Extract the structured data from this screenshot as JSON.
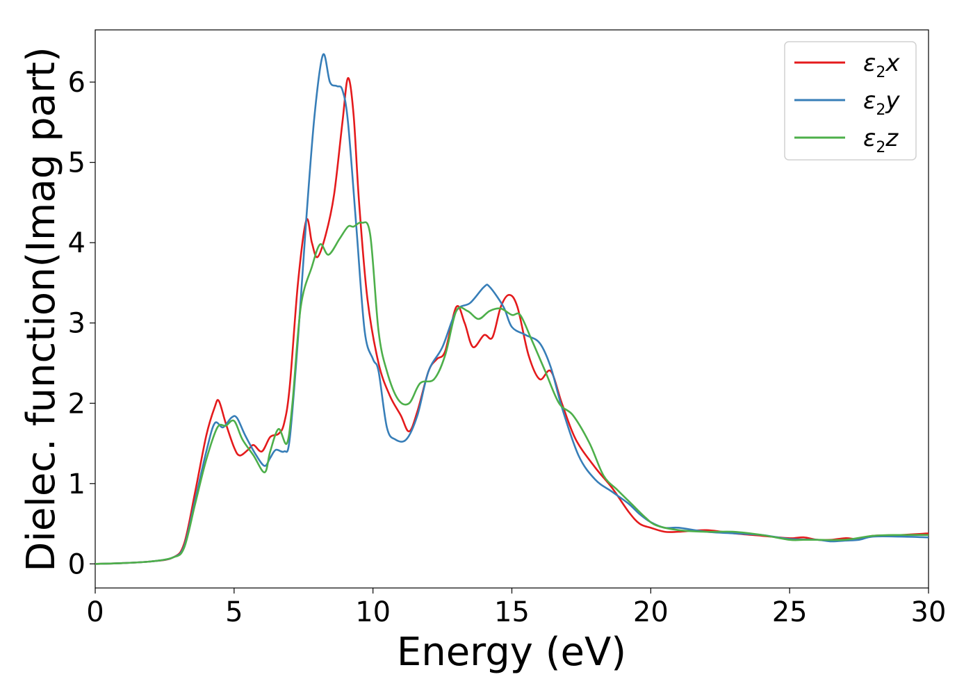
{
  "chart_data": {
    "type": "line",
    "title": "",
    "xlabel": "Energy (eV)",
    "ylabel": "Dielec. function(Imag part)",
    "xlim": [
      0,
      30
    ],
    "ylim": [
      -0.3,
      6.65
    ],
    "x_ticks": [
      0,
      5,
      10,
      15,
      20,
      25,
      30
    ],
    "y_ticks": [
      0,
      1,
      2,
      3,
      4,
      5,
      6
    ],
    "grid": false,
    "legend_position": "top-right",
    "series": [
      {
        "name": "ε₂x",
        "legend_main": "ε",
        "legend_sub": "2",
        "legend_suffix": "x",
        "color": "#e41a1c",
        "points": [
          [
            0,
            0
          ],
          [
            1,
            0.01
          ],
          [
            2,
            0.03
          ],
          [
            2.8,
            0.08
          ],
          [
            3.2,
            0.25
          ],
          [
            3.6,
            0.9
          ],
          [
            4,
            1.6
          ],
          [
            4.3,
            1.95
          ],
          [
            4.45,
            2.03
          ],
          [
            4.7,
            1.75
          ],
          [
            5,
            1.45
          ],
          [
            5.2,
            1.35
          ],
          [
            5.5,
            1.42
          ],
          [
            5.7,
            1.48
          ],
          [
            6,
            1.4
          ],
          [
            6.3,
            1.58
          ],
          [
            6.6,
            1.62
          ],
          [
            6.8,
            1.75
          ],
          [
            7,
            2.2
          ],
          [
            7.3,
            3.5
          ],
          [
            7.6,
            4.28
          ],
          [
            7.8,
            4.0
          ],
          [
            8,
            3.82
          ],
          [
            8.3,
            4.1
          ],
          [
            8.6,
            4.6
          ],
          [
            8.9,
            5.5
          ],
          [
            9.1,
            6.05
          ],
          [
            9.3,
            5.6
          ],
          [
            9.5,
            4.5
          ],
          [
            9.8,
            3.3
          ],
          [
            10.2,
            2.5
          ],
          [
            10.6,
            2.1
          ],
          [
            11,
            1.85
          ],
          [
            11.3,
            1.65
          ],
          [
            11.6,
            1.9
          ],
          [
            12,
            2.4
          ],
          [
            12.3,
            2.55
          ],
          [
            12.6,
            2.65
          ],
          [
            13,
            3.2
          ],
          [
            13.3,
            3.0
          ],
          [
            13.6,
            2.7
          ],
          [
            14,
            2.85
          ],
          [
            14.3,
            2.82
          ],
          [
            14.6,
            3.2
          ],
          [
            14.9,
            3.35
          ],
          [
            15.2,
            3.2
          ],
          [
            15.6,
            2.6
          ],
          [
            16,
            2.3
          ],
          [
            16.4,
            2.4
          ],
          [
            16.8,
            2.0
          ],
          [
            17.3,
            1.55
          ],
          [
            18,
            1.2
          ],
          [
            18.6,
            0.95
          ],
          [
            19.2,
            0.65
          ],
          [
            19.6,
            0.5
          ],
          [
            20,
            0.45
          ],
          [
            20.5,
            0.4
          ],
          [
            21,
            0.4
          ],
          [
            22,
            0.42
          ],
          [
            23,
            0.38
          ],
          [
            24,
            0.35
          ],
          [
            25,
            0.32
          ],
          [
            25.5,
            0.33
          ],
          [
            26,
            0.3
          ],
          [
            26.5,
            0.3
          ],
          [
            27,
            0.32
          ],
          [
            27.5,
            0.31
          ],
          [
            28,
            0.35
          ],
          [
            29,
            0.36
          ],
          [
            30,
            0.38
          ]
        ]
      },
      {
        "name": "ε₂y",
        "legend_main": "ε",
        "legend_sub": "2",
        "legend_suffix": "y",
        "color": "#377eb8",
        "points": [
          [
            0,
            0
          ],
          [
            1,
            0.01
          ],
          [
            2,
            0.03
          ],
          [
            2.8,
            0.08
          ],
          [
            3.2,
            0.22
          ],
          [
            3.6,
            0.8
          ],
          [
            4,
            1.4
          ],
          [
            4.3,
            1.75
          ],
          [
            4.6,
            1.7
          ],
          [
            4.9,
            1.82
          ],
          [
            5.1,
            1.82
          ],
          [
            5.4,
            1.6
          ],
          [
            5.8,
            1.35
          ],
          [
            6.1,
            1.22
          ],
          [
            6.3,
            1.32
          ],
          [
            6.5,
            1.42
          ],
          [
            6.8,
            1.4
          ],
          [
            7,
            1.55
          ],
          [
            7.3,
            2.8
          ],
          [
            7.6,
            4.3
          ],
          [
            7.9,
            5.6
          ],
          [
            8.2,
            6.34
          ],
          [
            8.45,
            6.0
          ],
          [
            8.7,
            5.95
          ],
          [
            8.9,
            5.9
          ],
          [
            9.1,
            5.5
          ],
          [
            9.4,
            4.2
          ],
          [
            9.7,
            2.9
          ],
          [
            10,
            2.55
          ],
          [
            10.2,
            2.4
          ],
          [
            10.5,
            1.7
          ],
          [
            10.8,
            1.55
          ],
          [
            11.2,
            1.55
          ],
          [
            11.6,
            1.85
          ],
          [
            12,
            2.4
          ],
          [
            12.5,
            2.7
          ],
          [
            13,
            3.15
          ],
          [
            13.5,
            3.25
          ],
          [
            14,
            3.45
          ],
          [
            14.2,
            3.45
          ],
          [
            14.7,
            3.2
          ],
          [
            15,
            2.95
          ],
          [
            15.5,
            2.85
          ],
          [
            16,
            2.75
          ],
          [
            16.4,
            2.45
          ],
          [
            16.8,
            1.95
          ],
          [
            17.4,
            1.35
          ],
          [
            18,
            1.05
          ],
          [
            18.6,
            0.9
          ],
          [
            19.2,
            0.75
          ],
          [
            19.6,
            0.62
          ],
          [
            20,
            0.52
          ],
          [
            20.5,
            0.45
          ],
          [
            21,
            0.45
          ],
          [
            22,
            0.4
          ],
          [
            23,
            0.38
          ],
          [
            24,
            0.36
          ],
          [
            25,
            0.31
          ],
          [
            26,
            0.3
          ],
          [
            26.5,
            0.28
          ],
          [
            27,
            0.29
          ],
          [
            27.5,
            0.3
          ],
          [
            28,
            0.34
          ],
          [
            29,
            0.34
          ],
          [
            30,
            0.33
          ]
        ]
      },
      {
        "name": "ε₂z",
        "legend_main": "ε",
        "legend_sub": "2",
        "legend_suffix": "z",
        "color": "#4daf4a",
        "points": [
          [
            0,
            0
          ],
          [
            1,
            0.01
          ],
          [
            2,
            0.03
          ],
          [
            2.8,
            0.08
          ],
          [
            3.2,
            0.2
          ],
          [
            3.6,
            0.75
          ],
          [
            4,
            1.3
          ],
          [
            4.4,
            1.7
          ],
          [
            4.7,
            1.72
          ],
          [
            5,
            1.78
          ],
          [
            5.3,
            1.55
          ],
          [
            5.7,
            1.35
          ],
          [
            6.1,
            1.14
          ],
          [
            6.3,
            1.4
          ],
          [
            6.6,
            1.68
          ],
          [
            6.9,
            1.5
          ],
          [
            7.1,
            2.0
          ],
          [
            7.4,
            3.2
          ],
          [
            7.8,
            3.7
          ],
          [
            8.1,
            3.98
          ],
          [
            8.4,
            3.85
          ],
          [
            8.8,
            4.05
          ],
          [
            9.1,
            4.2
          ],
          [
            9.3,
            4.2
          ],
          [
            9.6,
            4.25
          ],
          [
            9.9,
            4.1
          ],
          [
            10.2,
            2.9
          ],
          [
            10.5,
            2.4
          ],
          [
            10.9,
            2.05
          ],
          [
            11.3,
            2.0
          ],
          [
            11.7,
            2.25
          ],
          [
            12.2,
            2.3
          ],
          [
            12.6,
            2.6
          ],
          [
            13,
            3.15
          ],
          [
            13.4,
            3.15
          ],
          [
            13.8,
            3.05
          ],
          [
            14.2,
            3.15
          ],
          [
            14.6,
            3.18
          ],
          [
            15,
            3.1
          ],
          [
            15.3,
            3.1
          ],
          [
            15.7,
            2.8
          ],
          [
            16.2,
            2.4
          ],
          [
            16.7,
            2.0
          ],
          [
            17.2,
            1.85
          ],
          [
            17.8,
            1.5
          ],
          [
            18.3,
            1.1
          ],
          [
            18.8,
            0.92
          ],
          [
            19.3,
            0.75
          ],
          [
            19.8,
            0.58
          ],
          [
            20.2,
            0.48
          ],
          [
            21,
            0.42
          ],
          [
            22,
            0.4
          ],
          [
            23,
            0.4
          ],
          [
            24,
            0.36
          ],
          [
            25,
            0.3
          ],
          [
            25.5,
            0.3
          ],
          [
            26,
            0.3
          ],
          [
            27,
            0.3
          ],
          [
            28,
            0.35
          ],
          [
            29,
            0.36
          ],
          [
            30,
            0.36
          ]
        ]
      }
    ]
  }
}
